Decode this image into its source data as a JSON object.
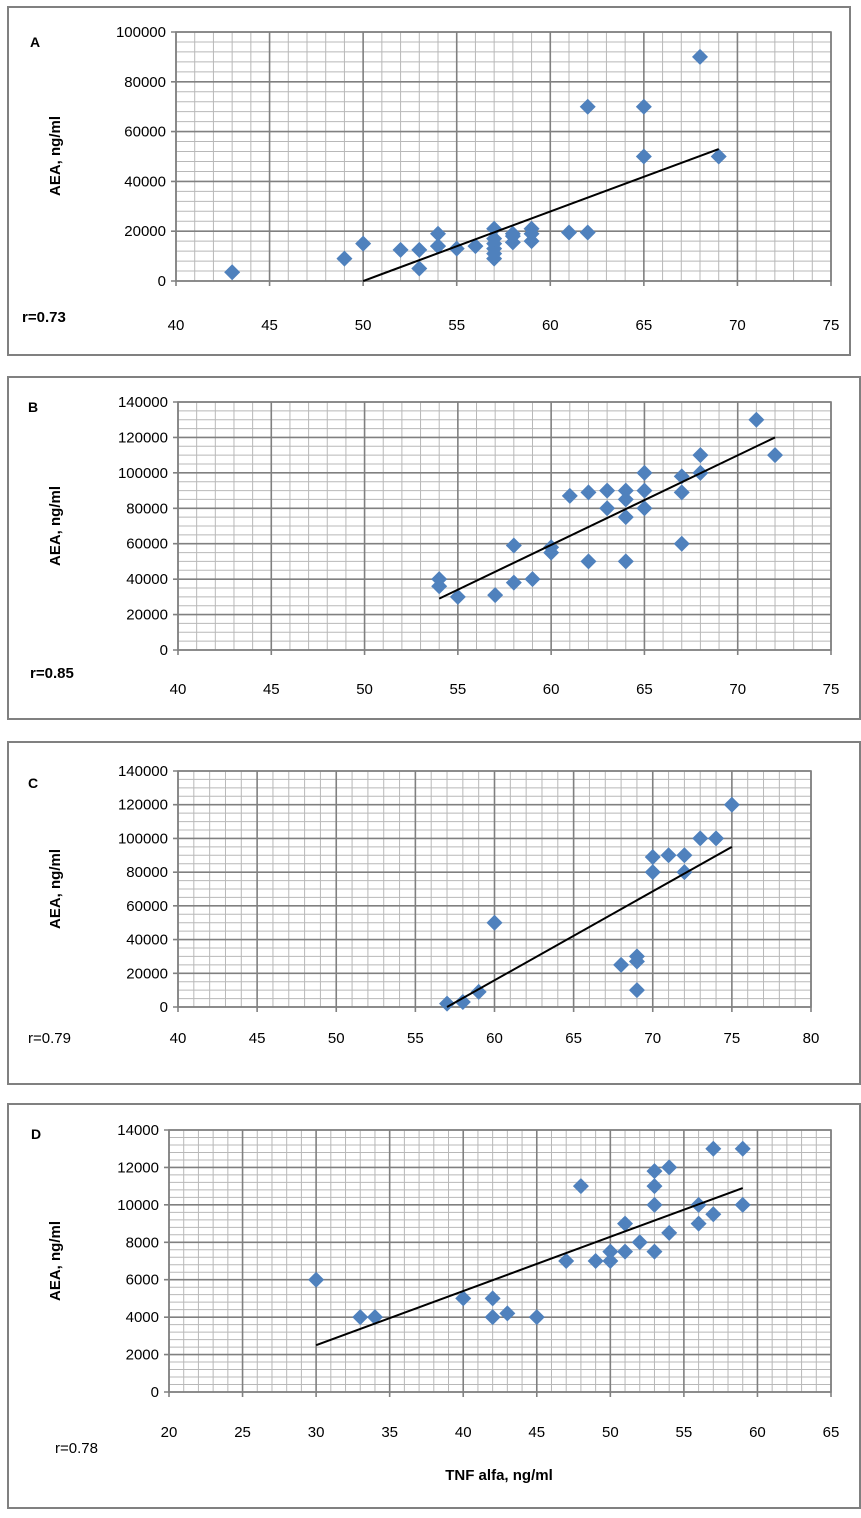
{
  "chart_data": [
    {
      "type": "scatter",
      "panel_label": "A",
      "ylabel": "AEA, ng/ml",
      "xlabel": "",
      "annotation": "r=0.73",
      "xlim": [
        40,
        75
      ],
      "ylim": [
        0,
        100000
      ],
      "x_ticks": [
        40,
        45,
        50,
        55,
        60,
        65,
        70,
        75
      ],
      "y_ticks": [
        0,
        20000,
        40000,
        60000,
        80000,
        100000
      ],
      "grid": "on",
      "x": [
        43,
        49,
        50,
        52,
        53,
        53,
        54,
        54,
        54,
        55,
        56,
        57,
        57,
        57,
        57,
        57,
        57,
        58,
        58,
        58,
        59,
        59,
        59,
        61,
        62,
        62,
        65,
        65,
        68,
        69
      ],
      "y": [
        3500,
        9000,
        15000,
        12500,
        12500,
        5000,
        14000,
        19000,
        14000,
        13000,
        14000,
        21000,
        15000,
        13000,
        11000,
        9000,
        17000,
        19000,
        15500,
        18000,
        16000,
        21000,
        19000,
        19500,
        19500,
        70000,
        70000,
        50000,
        90000,
        50000
      ],
      "trendline": {
        "x": [
          50,
          69
        ],
        "y": [
          0,
          53000
        ]
      }
    },
    {
      "type": "scatter",
      "panel_label": "B",
      "ylabel": "AEA, ng/ml",
      "xlabel": "",
      "annotation": "r=0.85",
      "xlim": [
        40,
        75
      ],
      "ylim": [
        0,
        140000
      ],
      "x_ticks": [
        40,
        45,
        50,
        55,
        60,
        65,
        70,
        75
      ],
      "y_ticks": [
        0,
        20000,
        40000,
        60000,
        80000,
        100000,
        120000,
        140000
      ],
      "grid": "on",
      "x": [
        54,
        54,
        55,
        57,
        58,
        58,
        59,
        60,
        60,
        61,
        62,
        62,
        63,
        63,
        64,
        64,
        64,
        64,
        65,
        65,
        65,
        67,
        67,
        67,
        68,
        68,
        71,
        72
      ],
      "y": [
        40000,
        36000,
        30000,
        31000,
        59000,
        38000,
        40000,
        58000,
        55000,
        87000,
        89000,
        50000,
        90000,
        80000,
        90000,
        85000,
        75000,
        50000,
        100000,
        90000,
        80000,
        98000,
        89000,
        60000,
        110000,
        100000,
        130000,
        110000
      ],
      "trendline": {
        "x": [
          54,
          72
        ],
        "y": [
          29000,
          120000
        ]
      }
    },
    {
      "type": "scatter",
      "panel_label": "C",
      "ylabel": "AEA, ng/ml",
      "xlabel": "",
      "annotation": "r=0.79",
      "xlim": [
        40,
        80
      ],
      "ylim": [
        0,
        140000
      ],
      "x_ticks": [
        40,
        45,
        50,
        55,
        60,
        65,
        70,
        75,
        80
      ],
      "y_ticks": [
        0,
        20000,
        40000,
        60000,
        80000,
        100000,
        120000,
        140000
      ],
      "grid": "on",
      "x": [
        57,
        58,
        59,
        60,
        68,
        69,
        69,
        69,
        70,
        70,
        71,
        72,
        72,
        73,
        74,
        75
      ],
      "y": [
        2000,
        3000,
        9000,
        50000,
        25000,
        30000,
        27000,
        10000,
        89000,
        80000,
        90000,
        90000,
        80000,
        100000,
        100000,
        120000
      ],
      "trendline": {
        "x": [
          57,
          75
        ],
        "y": [
          0,
          95000
        ]
      }
    },
    {
      "type": "scatter",
      "panel_label": "D",
      "ylabel": "AEA, ng/ml",
      "xlabel": "TNF alfa, ng/ml",
      "annotation": "r=0.78",
      "xlim": [
        20,
        65
      ],
      "ylim": [
        0,
        14000
      ],
      "x_ticks": [
        20,
        25,
        30,
        35,
        40,
        45,
        50,
        55,
        60,
        65
      ],
      "y_ticks": [
        0,
        2000,
        4000,
        6000,
        8000,
        10000,
        12000,
        14000
      ],
      "grid": "on",
      "x": [
        30,
        33,
        34,
        40,
        42,
        42,
        43,
        45,
        47,
        48,
        49,
        50,
        50,
        51,
        51,
        52,
        53,
        53,
        53,
        53,
        54,
        54,
        56,
        56,
        57,
        57,
        59,
        59
      ],
      "y": [
        6000,
        4000,
        4000,
        5000,
        5000,
        4000,
        4200,
        4000,
        7000,
        11000,
        7000,
        7500,
        7000,
        9000,
        7500,
        8000,
        11800,
        11000,
        10000,
        7500,
        12000,
        8500,
        10000,
        9000,
        13000,
        9500,
        13000,
        10000
      ],
      "trendline": {
        "x": [
          30,
          59
        ],
        "y": [
          2500,
          10900
        ]
      }
    }
  ],
  "colors": {
    "marker": "#4F81BD",
    "trendline": "#000000",
    "grid_major": "#808080",
    "grid_minor": "#B8B8B8",
    "panel_border": "#808080"
  }
}
